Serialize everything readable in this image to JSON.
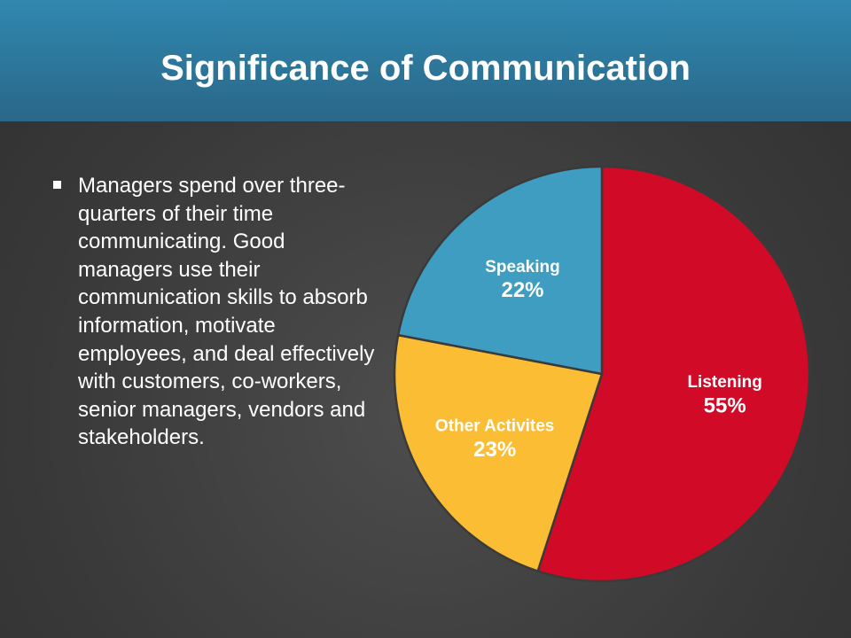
{
  "header": {
    "title": "Significance of Communication"
  },
  "bullets": [
    "Managers spend over three-quarters of their time communicating. Good managers use their communication skills to absorb information, motivate employees, and deal effectively with customers, co-workers, senior managers, vendors and stakeholders."
  ],
  "chart_data": {
    "type": "pie",
    "categories": [
      "Listening",
      "Other Activites",
      "Speaking"
    ],
    "values": [
      55,
      23,
      22
    ],
    "value_labels": [
      "55%",
      "23%",
      "22%"
    ],
    "colors": [
      "#d10a28",
      "#fbbd34",
      "#3e9dc1"
    ]
  }
}
